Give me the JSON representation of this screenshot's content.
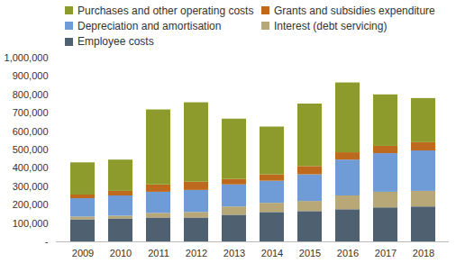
{
  "chart_data": {
    "type": "bar",
    "stacked": true,
    "categories": [
      "2009",
      "2010",
      "2011",
      "2012",
      "2013",
      "2014",
      "2015",
      "2016",
      "2017",
      "2018"
    ],
    "series": [
      {
        "name": "Employee costs",
        "color": "#4f6171",
        "values": [
          120000,
          125000,
          130000,
          130000,
          145000,
          160000,
          165000,
          175000,
          185000,
          190000
        ]
      },
      {
        "name": "Interest (debt servicing)",
        "color": "#b8a878",
        "values": [
          15000,
          15000,
          25000,
          30000,
          45000,
          50000,
          55000,
          75000,
          85000,
          85000
        ]
      },
      {
        "name": "Depreciation and amortisation",
        "color": "#6f9bd6",
        "values": [
          100000,
          110000,
          115000,
          120000,
          120000,
          120000,
          145000,
          195000,
          210000,
          220000
        ]
      },
      {
        "name": "Grants and subsidies expenditure",
        "color": "#bd6a1e",
        "values": [
          20000,
          25000,
          40000,
          45000,
          30000,
          35000,
          45000,
          40000,
          40000,
          45000
        ]
      },
      {
        "name": "Purchases and other operating costs",
        "color": "#8c9b2c",
        "values": [
          175000,
          170000,
          408000,
          432000,
          328000,
          260000,
          340000,
          380000,
          280000,
          240000
        ]
      }
    ],
    "ylim": [
      0,
      1000000
    ],
    "yticks": [
      {
        "value": 0,
        "label": "-"
      },
      {
        "value": 100000,
        "label": "100,000"
      },
      {
        "value": 200000,
        "label": "200,000"
      },
      {
        "value": 300000,
        "label": "300,000"
      },
      {
        "value": 400000,
        "label": "400,000"
      },
      {
        "value": 500000,
        "label": "500,000"
      },
      {
        "value": 600000,
        "label": "600,000"
      },
      {
        "value": 700000,
        "label": "700,000"
      },
      {
        "value": 800000,
        "label": "800,000"
      },
      {
        "value": 900000,
        "label": "900,000"
      },
      {
        "value": 1000000,
        "label": "1,000,000"
      }
    ],
    "grid": false,
    "legend": "top"
  }
}
